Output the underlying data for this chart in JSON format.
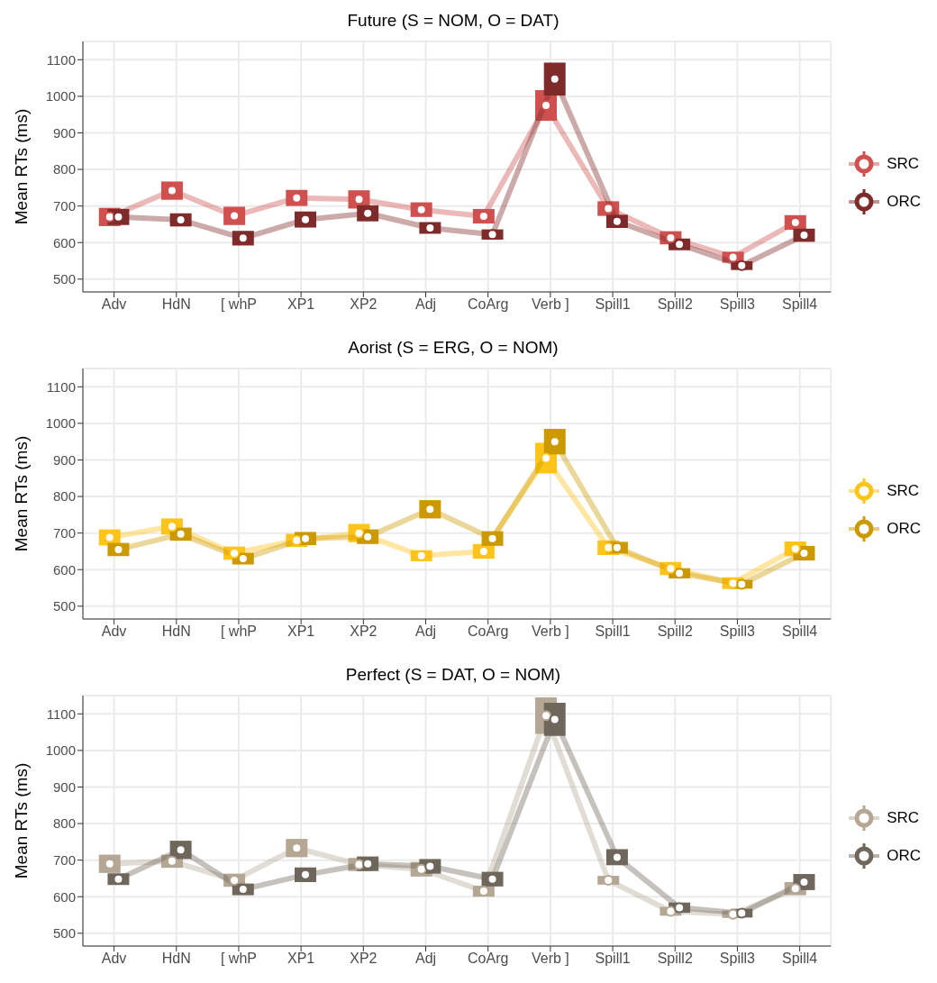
{
  "chart_data": [
    {
      "type": "line",
      "title": "Future (S = NOM, O = DAT)",
      "ylabel": "Mean RTs (ms)",
      "categories": [
        "Adv",
        "HdN",
        "[ whP",
        "XP1",
        "XP2",
        "Adj",
        "CoArg",
        "Verb ]",
        "Spill1",
        "Spill2",
        "Spill3",
        "Spill4"
      ],
      "ylim": [
        465,
        1150
      ],
      "yticks": [
        500,
        600,
        700,
        800,
        900,
        1000,
        1100
      ],
      "grid": true,
      "legend": "right",
      "marker": "circle",
      "series": [
        {
          "name": "SRC",
          "color": "#d05050",
          "values": [
            670,
            742,
            673,
            722,
            718,
            690,
            672,
            975,
            693,
            613,
            560,
            655
          ],
          "errors": [
            25,
            25,
            25,
            22,
            25,
            20,
            20,
            42,
            20,
            18,
            15,
            20
          ]
        },
        {
          "name": "ORC",
          "color": "#7f2b2b",
          "values": [
            670,
            662,
            612,
            663,
            680,
            640,
            622,
            1047,
            658,
            595,
            537,
            620
          ],
          "errors": [
            22,
            18,
            20,
            22,
            22,
            16,
            14,
            45,
            18,
            16,
            12,
            18
          ]
        }
      ]
    },
    {
      "type": "line",
      "title": "Aorist (S = ERG, O = NOM)",
      "ylabel": "Mean RTs (ms)",
      "categories": [
        "Adv",
        "HdN",
        "[ whP",
        "XP1",
        "XP2",
        "Adj",
        "CoArg",
        "Verb ]",
        "Spill1",
        "Spill2",
        "Spill3",
        "Spill4"
      ],
      "ylim": [
        465,
        1150
      ],
      "yticks": [
        500,
        600,
        700,
        800,
        900,
        1000,
        1100
      ],
      "grid": true,
      "legend": "right",
      "marker": "circle",
      "series": [
        {
          "name": "SRC",
          "color": "#ffc41a",
          "values": [
            688,
            718,
            645,
            680,
            700,
            638,
            650,
            905,
            660,
            603,
            563,
            657
          ],
          "errors": [
            22,
            22,
            18,
            18,
            25,
            15,
            20,
            42,
            20,
            18,
            16,
            20
          ]
        },
        {
          "name": "ORC",
          "color": "#cc9a00",
          "values": [
            655,
            697,
            630,
            685,
            690,
            765,
            685,
            950,
            660,
            590,
            560,
            645
          ],
          "errors": [
            18,
            18,
            16,
            18,
            20,
            25,
            20,
            35,
            16,
            14,
            12,
            20
          ]
        }
      ]
    },
    {
      "type": "line",
      "title": "Perfect (S = DAT, O = NOM)",
      "ylabel": "Mean RTs (ms)",
      "categories": [
        "Adv",
        "HdN",
        "[ whP",
        "XP1",
        "XP2",
        "Adj",
        "CoArg",
        "Verb ]",
        "Spill1",
        "Spill2",
        "Spill3",
        "Spill4"
      ],
      "ylim": [
        465,
        1150
      ],
      "yticks": [
        500,
        600,
        700,
        800,
        900,
        1000,
        1100
      ],
      "grid": true,
      "legend": "right",
      "marker": "circle",
      "series": [
        {
          "name": "SRC",
          "color": "#b5a794",
          "values": [
            690,
            697,
            645,
            733,
            688,
            675,
            615,
            1095,
            645,
            560,
            552,
            622
          ],
          "errors": [
            25,
            18,
            18,
            25,
            18,
            20,
            15,
            50,
            12,
            12,
            10,
            18
          ]
        },
        {
          "name": "ORC",
          "color": "#6f675b",
          "values": [
            648,
            728,
            620,
            660,
            690,
            683,
            648,
            1085,
            708,
            570,
            555,
            640
          ],
          "errors": [
            16,
            25,
            16,
            20,
            20,
            20,
            20,
            45,
            22,
            14,
            12,
            22
          ]
        }
      ]
    }
  ]
}
